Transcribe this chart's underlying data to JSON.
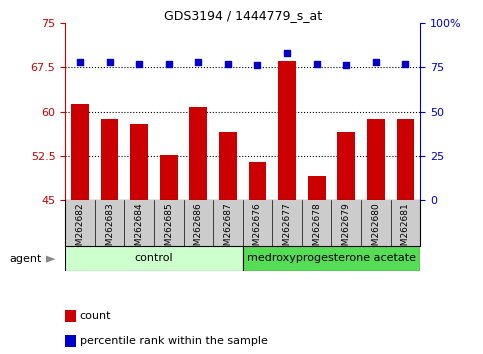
{
  "title": "GDS3194 / 1444779_s_at",
  "samples": [
    "GSM262682",
    "GSM262683",
    "GSM262684",
    "GSM262685",
    "GSM262686",
    "GSM262687",
    "GSM262676",
    "GSM262677",
    "GSM262678",
    "GSM262679",
    "GSM262680",
    "GSM262681"
  ],
  "count_values": [
    61.2,
    58.8,
    57.8,
    52.7,
    60.8,
    56.5,
    51.5,
    68.5,
    49.0,
    56.5,
    58.8,
    58.8
  ],
  "percentile_values": [
    78,
    78,
    77,
    77,
    78,
    77,
    76,
    83,
    77,
    76,
    78,
    77
  ],
  "left_ylim": [
    45,
    75
  ],
  "left_yticks": [
    45,
    52.5,
    60,
    67.5,
    75
  ],
  "left_ytick_labels": [
    "45",
    "52.5",
    "60",
    "67.5",
    "75"
  ],
  "right_ylim": [
    0,
    100
  ],
  "right_yticks": [
    0,
    25,
    50,
    75,
    100
  ],
  "right_ytick_labels": [
    "0",
    "25",
    "50",
    "75",
    "100%"
  ],
  "bar_color": "#cc0000",
  "dot_color": "#0000cc",
  "control_samples": 6,
  "control_label": "control",
  "treatment_label": "medroxyprogesterone acetate",
  "control_bg": "#ccffcc",
  "treatment_bg": "#55dd55",
  "agent_label": "agent",
  "legend_count_label": "count",
  "legend_percentile_label": "percentile rank within the sample",
  "hline_values": [
    52.5,
    60.0,
    67.5
  ],
  "bar_width": 0.6,
  "dot_size": 18,
  "bar_bottom": 45
}
